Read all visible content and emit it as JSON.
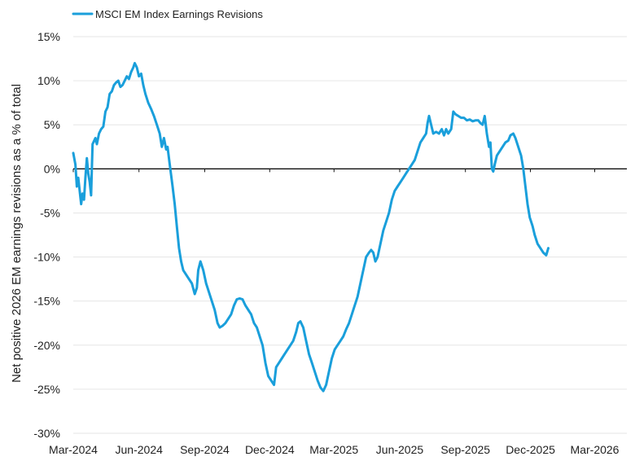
{
  "chart_data": {
    "type": "line",
    "title": "",
    "xlabel": "",
    "ylabel": "Net positive 2026 EM earnings revisions as a % of total",
    "ylim": [
      -30,
      15
    ],
    "xlim": [
      "2024-03-01",
      "2026-04-15"
    ],
    "y_ticks": [
      15,
      10,
      5,
      0,
      -5,
      -10,
      -15,
      -20,
      -25,
      -30
    ],
    "y_tick_labels": [
      "15%",
      "10%",
      "5%",
      "0%",
      "-5%",
      "-10%",
      "-15%",
      "-20%",
      "-25%",
      "-30%"
    ],
    "x_ticks": [
      "2024-03-01",
      "2024-06-01",
      "2024-09-01",
      "2024-12-01",
      "2025-03-01",
      "2025-06-01",
      "2025-09-01",
      "2025-12-01",
      "2026-03-01"
    ],
    "x_tick_labels": [
      "Mar-2024",
      "Jun-2024",
      "Sep-2024",
      "Dec-2024",
      "Mar-2025",
      "Jun-2025",
      "Sep-2025",
      "Dec-2025",
      "Mar-2026"
    ],
    "grid": "horizontal",
    "zero_line": true,
    "legend_position": "top-left",
    "series": [
      {
        "name": "MSCI EM Index Earnings Revisions",
        "color": "#1a9fdb",
        "points": [
          [
            "2024-03-01",
            1.8
          ],
          [
            "2024-03-04",
            0.5
          ],
          [
            "2024-03-06",
            -2.0
          ],
          [
            "2024-03-08",
            -1.0
          ],
          [
            "2024-03-10",
            -2.5
          ],
          [
            "2024-03-12",
            -4.0
          ],
          [
            "2024-03-14",
            -2.8
          ],
          [
            "2024-03-16",
            -3.5
          ],
          [
            "2024-03-18",
            -1.0
          ],
          [
            "2024-03-20",
            1.2
          ],
          [
            "2024-03-22",
            -0.5
          ],
          [
            "2024-03-24",
            -1.5
          ],
          [
            "2024-03-26",
            -3.0
          ],
          [
            "2024-03-28",
            2.8
          ],
          [
            "2024-04-01",
            3.5
          ],
          [
            "2024-04-03",
            2.8
          ],
          [
            "2024-04-06",
            4.0
          ],
          [
            "2024-04-09",
            4.5
          ],
          [
            "2024-04-12",
            4.8
          ],
          [
            "2024-04-15",
            6.5
          ],
          [
            "2024-04-18",
            7.0
          ],
          [
            "2024-04-21",
            8.5
          ],
          [
            "2024-04-24",
            8.8
          ],
          [
            "2024-04-27",
            9.5
          ],
          [
            "2024-04-30",
            9.8
          ],
          [
            "2024-05-03",
            10.0
          ],
          [
            "2024-05-06",
            9.3
          ],
          [
            "2024-05-09",
            9.5
          ],
          [
            "2024-05-12",
            10.0
          ],
          [
            "2024-05-15",
            10.5
          ],
          [
            "2024-05-18",
            10.2
          ],
          [
            "2024-05-21",
            11.0
          ],
          [
            "2024-05-24",
            11.5
          ],
          [
            "2024-05-26",
            12.0
          ],
          [
            "2024-05-29",
            11.5
          ],
          [
            "2024-06-01",
            10.5
          ],
          [
            "2024-06-04",
            10.8
          ],
          [
            "2024-06-07",
            9.5
          ],
          [
            "2024-06-10",
            8.5
          ],
          [
            "2024-06-14",
            7.5
          ],
          [
            "2024-06-18",
            6.8
          ],
          [
            "2024-06-22",
            6.0
          ],
          [
            "2024-06-26",
            5.0
          ],
          [
            "2024-06-30",
            4.0
          ],
          [
            "2024-07-03",
            2.5
          ],
          [
            "2024-07-06",
            3.5
          ],
          [
            "2024-07-09",
            2.2
          ],
          [
            "2024-07-11",
            2.5
          ],
          [
            "2024-07-14",
            0.5
          ],
          [
            "2024-07-18",
            -2.0
          ],
          [
            "2024-07-21",
            -4.0
          ],
          [
            "2024-07-24",
            -6.5
          ],
          [
            "2024-07-27",
            -9.0
          ],
          [
            "2024-07-30",
            -10.5
          ],
          [
            "2024-08-02",
            -11.5
          ],
          [
            "2024-08-06",
            -12.0
          ],
          [
            "2024-08-10",
            -12.5
          ],
          [
            "2024-08-14",
            -13.0
          ],
          [
            "2024-08-18",
            -14.2
          ],
          [
            "2024-08-21",
            -13.5
          ],
          [
            "2024-08-23",
            -11.5
          ],
          [
            "2024-08-26",
            -10.5
          ],
          [
            "2024-08-30",
            -11.5
          ],
          [
            "2024-09-03",
            -13.0
          ],
          [
            "2024-09-07",
            -14.0
          ],
          [
            "2024-09-11",
            -15.0
          ],
          [
            "2024-09-15",
            -16.0
          ],
          [
            "2024-09-19",
            -17.5
          ],
          [
            "2024-09-22",
            -18.0
          ],
          [
            "2024-09-26",
            -17.8
          ],
          [
            "2024-09-30",
            -17.5
          ],
          [
            "2024-10-04",
            -17.0
          ],
          [
            "2024-10-08",
            -16.5
          ],
          [
            "2024-10-12",
            -15.5
          ],
          [
            "2024-10-16",
            -14.8
          ],
          [
            "2024-10-20",
            -14.7
          ],
          [
            "2024-10-24",
            -14.8
          ],
          [
            "2024-10-28",
            -15.5
          ],
          [
            "2024-11-01",
            -16.0
          ],
          [
            "2024-11-05",
            -16.5
          ],
          [
            "2024-11-09",
            -17.5
          ],
          [
            "2024-11-13",
            -18.0
          ],
          [
            "2024-11-17",
            -19.0
          ],
          [
            "2024-11-21",
            -20.0
          ],
          [
            "2024-11-25",
            -22.0
          ],
          [
            "2024-11-29",
            -23.5
          ],
          [
            "2024-12-03",
            -24.0
          ],
          [
            "2024-12-07",
            -24.5
          ],
          [
            "2024-12-10",
            -22.5
          ],
          [
            "2024-12-14",
            -22.0
          ],
          [
            "2024-12-18",
            -21.5
          ],
          [
            "2024-12-22",
            -21.0
          ],
          [
            "2024-12-26",
            -20.5
          ],
          [
            "2024-12-30",
            -20.0
          ],
          [
            "2025-01-03",
            -19.5
          ],
          [
            "2025-01-07",
            -18.5
          ],
          [
            "2025-01-10",
            -17.5
          ],
          [
            "2025-01-13",
            -17.3
          ],
          [
            "2025-01-17",
            -18.0
          ],
          [
            "2025-01-21",
            -19.5
          ],
          [
            "2025-01-25",
            -21.0
          ],
          [
            "2025-01-29",
            -22.0
          ],
          [
            "2025-02-02",
            -23.0
          ],
          [
            "2025-02-06",
            -24.0
          ],
          [
            "2025-02-10",
            -24.8
          ],
          [
            "2025-02-14",
            -25.2
          ],
          [
            "2025-02-18",
            -24.5
          ],
          [
            "2025-02-22",
            -23.0
          ],
          [
            "2025-02-26",
            -21.5
          ],
          [
            "2025-03-02",
            -20.5
          ],
          [
            "2025-03-06",
            -20.0
          ],
          [
            "2025-03-10",
            -19.5
          ],
          [
            "2025-03-14",
            -19.0
          ],
          [
            "2025-03-18",
            -18.2
          ],
          [
            "2025-03-22",
            -17.5
          ],
          [
            "2025-03-26",
            -16.5
          ],
          [
            "2025-03-30",
            -15.5
          ],
          [
            "2025-04-03",
            -14.5
          ],
          [
            "2025-04-07",
            -13.0
          ],
          [
            "2025-04-11",
            -11.5
          ],
          [
            "2025-04-15",
            -10.0
          ],
          [
            "2025-04-19",
            -9.5
          ],
          [
            "2025-04-22",
            -9.2
          ],
          [
            "2025-04-25",
            -9.5
          ],
          [
            "2025-04-28",
            -10.5
          ],
          [
            "2025-05-01",
            -10.0
          ],
          [
            "2025-05-05",
            -8.5
          ],
          [
            "2025-05-09",
            -7.0
          ],
          [
            "2025-05-13",
            -6.0
          ],
          [
            "2025-05-17",
            -5.0
          ],
          [
            "2025-05-21",
            -3.5
          ],
          [
            "2025-05-25",
            -2.5
          ],
          [
            "2025-05-29",
            -2.0
          ],
          [
            "2025-06-02",
            -1.5
          ],
          [
            "2025-06-06",
            -1.0
          ],
          [
            "2025-06-10",
            -0.5
          ],
          [
            "2025-06-14",
            0.0
          ],
          [
            "2025-06-18",
            0.5
          ],
          [
            "2025-06-22",
            1.0
          ],
          [
            "2025-06-26",
            2.0
          ],
          [
            "2025-06-30",
            3.0
          ],
          [
            "2025-07-04",
            3.5
          ],
          [
            "2025-07-08",
            4.0
          ],
          [
            "2025-07-10",
            5.2
          ],
          [
            "2025-07-12",
            6.0
          ],
          [
            "2025-07-15",
            5.0
          ],
          [
            "2025-07-18",
            4.0
          ],
          [
            "2025-07-22",
            4.2
          ],
          [
            "2025-07-26",
            4.0
          ],
          [
            "2025-07-30",
            4.5
          ],
          [
            "2025-08-02",
            3.8
          ],
          [
            "2025-08-05",
            4.5
          ],
          [
            "2025-08-08",
            4.0
          ],
          [
            "2025-08-12",
            4.5
          ],
          [
            "2025-08-15",
            6.5
          ],
          [
            "2025-08-18",
            6.2
          ],
          [
            "2025-08-22",
            6.0
          ],
          [
            "2025-08-26",
            5.8
          ],
          [
            "2025-08-30",
            5.8
          ],
          [
            "2025-09-03",
            5.5
          ],
          [
            "2025-09-07",
            5.6
          ],
          [
            "2025-09-11",
            5.4
          ],
          [
            "2025-09-15",
            5.5
          ],
          [
            "2025-09-19",
            5.5
          ],
          [
            "2025-09-22",
            5.2
          ],
          [
            "2025-09-25",
            5.0
          ],
          [
            "2025-09-28",
            6.0
          ],
          [
            "2025-10-01",
            4.0
          ],
          [
            "2025-10-04",
            2.5
          ],
          [
            "2025-10-06",
            3.0
          ],
          [
            "2025-10-08",
            0.0
          ],
          [
            "2025-10-10",
            -0.3
          ],
          [
            "2025-10-12",
            0.5
          ],
          [
            "2025-10-15",
            1.5
          ],
          [
            "2025-10-19",
            2.0
          ],
          [
            "2025-10-23",
            2.5
          ],
          [
            "2025-10-27",
            3.0
          ],
          [
            "2025-10-31",
            3.2
          ],
          [
            "2025-11-03",
            3.8
          ],
          [
            "2025-11-07",
            4.0
          ],
          [
            "2025-11-10",
            3.5
          ],
          [
            "2025-11-14",
            2.5
          ],
          [
            "2025-11-18",
            1.5
          ],
          [
            "2025-11-21",
            0.0
          ],
          [
            "2025-11-24",
            -2.0
          ],
          [
            "2025-11-27",
            -4.0
          ],
          [
            "2025-11-30",
            -5.5
          ],
          [
            "2025-12-04",
            -6.5
          ],
          [
            "2025-12-07",
            -7.5
          ],
          [
            "2025-12-11",
            -8.5
          ],
          [
            "2025-12-15",
            -9.0
          ],
          [
            "2025-12-19",
            -9.5
          ],
          [
            "2025-12-23",
            -9.8
          ],
          [
            "2025-12-26",
            -9.0
          ]
        ]
      }
    ]
  }
}
